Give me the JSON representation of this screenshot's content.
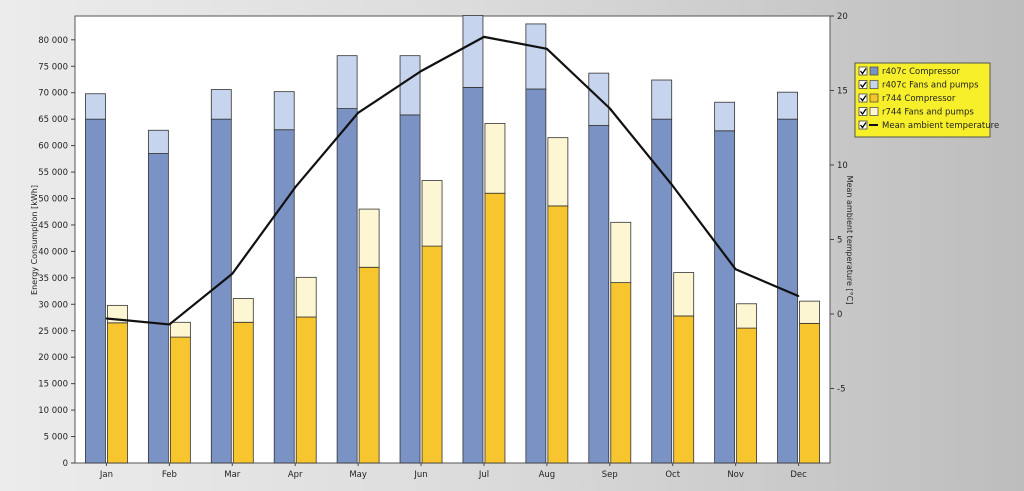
{
  "chart_data": {
    "type": "bar",
    "categories": [
      "Jan",
      "Feb",
      "Mar",
      "Apr",
      "May",
      "Jun",
      "Jul",
      "Aug",
      "Sep",
      "Oct",
      "Nov",
      "Dec"
    ],
    "y_ticks": [
      "0",
      "5 000",
      "10 000",
      "15 000",
      "20 000",
      "25 000",
      "30 000",
      "35 000",
      "40 000",
      "45 000",
      "50 000",
      "55 000",
      "60 000",
      "65 000",
      "70 000",
      "75 000",
      "80 000"
    ],
    "y2_ticks": [
      "-5",
      "0",
      "5",
      "10",
      "15",
      "20"
    ],
    "ylabel": "Energy Consumption [kWh]",
    "y2label": "Mean ambient temperature [°C]",
    "ylim": [
      0,
      84500
    ],
    "y2lim": [
      -10,
      20
    ],
    "stacks": [
      {
        "stack": "r407c",
        "series": [
          {
            "name": "r407c Compressor",
            "color": "#7b92c4",
            "values": [
              65000,
              58500,
              65000,
              63000,
              67000,
              65800,
              71000,
              70700,
              63800,
              65000,
              62800,
              65000
            ]
          },
          {
            "name": "r407c Fans and pumps",
            "color": "#c6d4ee",
            "values": [
              4800,
              4400,
              5600,
              7200,
              10000,
              11200,
              13600,
              12300,
              9900,
              7400,
              5400,
              5100
            ]
          }
        ]
      },
      {
        "stack": "r744",
        "series": [
          {
            "name": "r744 Compressor",
            "color": "#f7c52e",
            "values": [
              26500,
              23800,
              26600,
              27600,
              37000,
              41000,
              51000,
              48600,
              34100,
              27800,
              25500,
              26400
            ]
          },
          {
            "name": "r744 Fans and pumps",
            "color": "#fdf6d3",
            "values": [
              3300,
              2800,
              4500,
              7500,
              11000,
              12400,
              13200,
              12900,
              11400,
              8200,
              4600,
              4200
            ]
          }
        ]
      }
    ],
    "line": {
      "name": "Mean ambient temperature",
      "color": "#111111",
      "values": [
        -0.3,
        -0.7,
        2.7,
        8.5,
        13.5,
        16.3,
        18.6,
        17.8,
        13.8,
        8.6,
        3.0,
        1.2
      ]
    },
    "legend": {
      "placement": "right",
      "background": "#f6ef2a",
      "items": [
        {
          "label": "r407c Compressor",
          "color": "#7b92c4",
          "checked": true
        },
        {
          "label": "r407c Fans and pumps",
          "color": "#c6d4ee",
          "checked": true
        },
        {
          "label": "r744 Compressor",
          "color": "#f7c52e",
          "checked": true
        },
        {
          "label": "r744 Fans and pumps",
          "color": "#fdf6d3",
          "checked": true
        },
        {
          "label": "Mean ambient temperature",
          "color": "#111111",
          "checked": true,
          "line": true
        }
      ]
    },
    "grid": false
  }
}
